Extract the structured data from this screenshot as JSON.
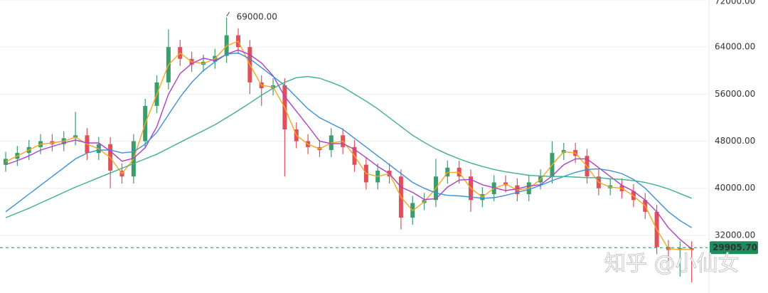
{
  "chart_data": {
    "type": "candlestick",
    "open": [
      44000,
      45000,
      46000,
      47000,
      48000,
      47500,
      48500,
      49000,
      46000,
      47500,
      43000,
      42000,
      48000,
      54000,
      58000,
      64000,
      62000,
      61000,
      61500,
      62500,
      66000,
      64000,
      58000,
      57000,
      57500,
      50000,
      48000,
      47000,
      46500,
      49000,
      47000,
      44000,
      41000,
      43000,
      42000,
      35000,
      37500,
      38000,
      42000,
      43500,
      42000,
      38000,
      39000,
      41000,
      40500,
      39000,
      41000,
      42000,
      46000,
      46500,
      45500,
      42000,
      40000,
      40500,
      39500,
      38000,
      36000,
      30000,
      29500,
      29800
    ],
    "high": [
      46200,
      47200,
      48200,
      49200,
      49200,
      49700,
      53000,
      50200,
      48700,
      48700,
      44200,
      49200,
      55200,
      59200,
      67000,
      65200,
      63200,
      62700,
      63700,
      69000,
      67200,
      65200,
      59200,
      58700,
      58700,
      51200,
      49200,
      48200,
      50200,
      50200,
      48200,
      45200,
      44200,
      44200,
      43200,
      38700,
      39200,
      45000,
      44700,
      44700,
      43200,
      40200,
      42200,
      42200,
      41700,
      42200,
      43200,
      48000,
      47700,
      47700,
      46700,
      43200,
      41700,
      41700,
      40700,
      39200,
      37200,
      31200,
      31000,
      31000
    ],
    "low": [
      42800,
      43800,
      44800,
      45800,
      46300,
      46300,
      47300,
      44800,
      44800,
      40000,
      40800,
      40800,
      46800,
      52800,
      56800,
      60800,
      59800,
      59800,
      60300,
      61300,
      62800,
      56000,
      54000,
      55800,
      42000,
      46800,
      45800,
      45300,
      45300,
      45800,
      42800,
      39800,
      39800,
      40800,
      33000,
      33800,
      36300,
      36800,
      40800,
      40800,
      36000,
      36800,
      37800,
      39300,
      37800,
      37800,
      39800,
      40800,
      44800,
      44300,
      40800,
      38800,
      38800,
      38300,
      36800,
      34800,
      28800,
      26000,
      25000,
      24000
    ],
    "close": [
      45000,
      46000,
      47000,
      48000,
      47500,
      48500,
      49000,
      46000,
      47500,
      43000,
      42000,
      48000,
      54000,
      58000,
      64000,
      62000,
      61000,
      61500,
      62500,
      66000,
      64000,
      58000,
      57000,
      57500,
      50000,
      48000,
      47000,
      46500,
      49000,
      47000,
      44000,
      41000,
      43000,
      42000,
      35000,
      37500,
      38000,
      42000,
      43500,
      42000,
      38000,
      39000,
      41000,
      40500,
      39000,
      41000,
      42000,
      46000,
      46500,
      45500,
      42000,
      40000,
      40500,
      39500,
      38000,
      36000,
      30000,
      29500,
      29800,
      29500
    ],
    "up_color": "#3a9e6a",
    "down_color": "#e0505a",
    "series": [
      {
        "color": "#f5a623",
        "values": [
          44500,
          45500,
          46500,
          47500,
          47700,
          48000,
          48700,
          47500,
          46700,
          45200,
          42500,
          45000,
          51000,
          56000,
          61000,
          63000,
          61500,
          61200,
          62000,
          64200,
          65000,
          61000,
          57500,
          57200,
          53700,
          49000,
          47500,
          46700,
          47700,
          48000,
          45500,
          42500,
          42000,
          42500,
          38500,
          36200,
          37700,
          40000,
          42700,
          42700,
          40000,
          38500,
          40000,
          40700,
          39700,
          40000,
          41500,
          44000,
          46200,
          46000,
          43700,
          41000,
          40200,
          40000,
          38700,
          37000,
          33000,
          29700,
          29600,
          29600
        ]
      },
      {
        "color": "#b03fc4",
        "values": [
          44000,
          44700,
          45500,
          46500,
          47100,
          47700,
          48200,
          47700,
          47700,
          46300,
          44600,
          45100,
          46900,
          50500,
          56000,
          59500,
          61200,
          62100,
          61700,
          62800,
          63500,
          62700,
          61300,
          59100,
          55600,
          53100,
          50600,
          48000,
          47600,
          47600,
          46600,
          45200,
          43700,
          42500,
          40200,
          39300,
          38100,
          38200,
          40200,
          41400,
          41500,
          40600,
          40100,
          39600,
          39900,
          40400,
          40600,
          42100,
          44000,
          45000,
          45000,
          43500,
          42000,
          40500,
          39500,
          38000,
          36000,
          33300,
          31300,
          29700
        ]
      },
      {
        "color": "#3d8fd6",
        "values": [
          36000,
          37500,
          39000,
          40500,
          42000,
          43500,
          45000,
          46000,
          46500,
          46500,
          46000,
          46200,
          47500,
          49500,
          52500,
          55500,
          58000,
          60000,
          61500,
          62800,
          63000,
          62000,
          60500,
          59000,
          57500,
          55500,
          53500,
          52000,
          51000,
          50000,
          48500,
          47000,
          45500,
          44000,
          42500,
          41000,
          40000,
          39200,
          38800,
          38700,
          38500,
          38300,
          38400,
          38800,
          39300,
          39800,
          40500,
          41300,
          42000,
          42700,
          43200,
          43300,
          43000,
          42500,
          41500,
          40000,
          38000,
          36000,
          34500,
          33300
        ]
      },
      {
        "color": "#3fb08a",
        "values": [
          35000,
          35800,
          36600,
          37500,
          38400,
          39300,
          40200,
          41000,
          41800,
          42600,
          43400,
          44200,
          45000,
          45800,
          46800,
          47800,
          48800,
          49800,
          50800,
          52000,
          53200,
          54500,
          55800,
          57000,
          58000,
          58800,
          59000,
          58700,
          58000,
          57200,
          56000,
          54800,
          53500,
          52000,
          50500,
          49000,
          47800,
          46700,
          45800,
          45000,
          44300,
          43700,
          43200,
          42800,
          42500,
          42200,
          42100,
          42000,
          42000,
          41900,
          41800,
          41800,
          41600,
          41500,
          41300,
          41000,
          40500,
          39900,
          39100,
          38300
        ]
      }
    ],
    "ylim": [
      22200,
      72000
    ],
    "yticks": [
      {
        "value": 72000,
        "label": "72000.00"
      },
      {
        "value": 64000,
        "label": "64000.00"
      },
      {
        "value": 56000,
        "label": "56000.00"
      },
      {
        "value": 48000,
        "label": "48000.00"
      },
      {
        "value": 40000,
        "label": "40000.00"
      },
      {
        "value": 32000,
        "label": "32000.00"
      }
    ],
    "grid": true,
    "high_label": {
      "value": 69000,
      "label": "69000.00"
    },
    "price_line": {
      "value": 29905.7,
      "label": "29905.70",
      "color": "#1f8a5c"
    },
    "watermark": "知乎 @小仙女"
  }
}
